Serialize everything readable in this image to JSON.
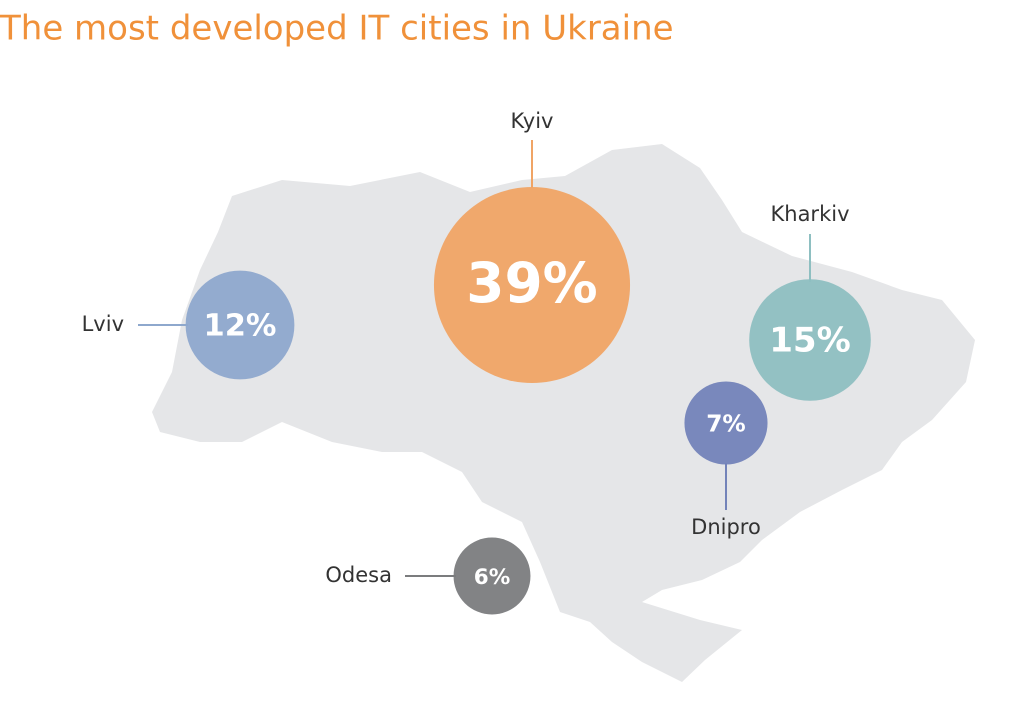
{
  "chart_data": {
    "type": "bubble",
    "title": "The most developed IT cities in Ukraine",
    "categories": [
      "Lviv",
      "Kyiv",
      "Kharkiv",
      "Dnipro",
      "Odesa"
    ],
    "values": [
      12,
      39,
      15,
      7,
      6
    ],
    "value_labels": [
      "12%",
      "39%",
      "15%",
      "7%",
      "6%"
    ],
    "colors": [
      "#8ea8cd",
      "#f0a465",
      "#8ebfc1",
      "#7383b9",
      "#7b7c7e"
    ]
  }
}
